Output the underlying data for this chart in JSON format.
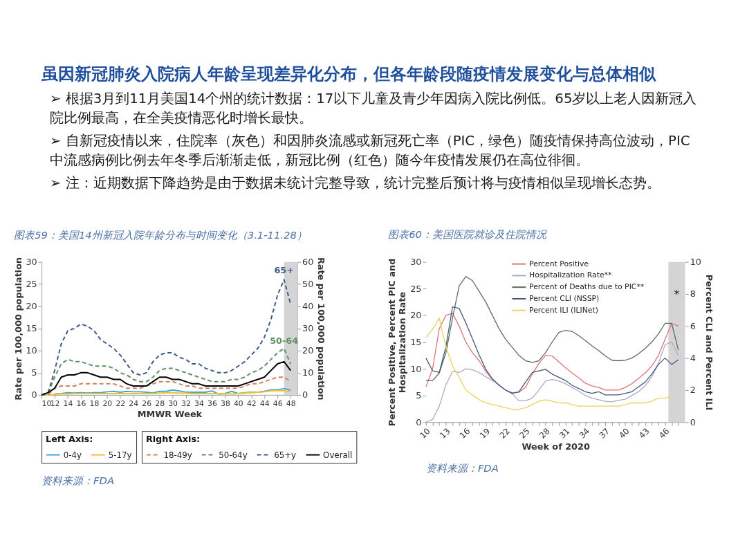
{
  "chart_data": [
    {
      "type": "other",
      "title": "虽因新冠肺炎入院病人年龄呈现差异化分布，但各年龄段随疫情发展变化与总体相似",
      "annotations": [
        "➢ 根据3月到11月美国14个州的统计数据：17以下儿童及青少年因病入院比例低。65岁以上老人因新冠入院比例最高，在全美疫情恶化时增长最快。",
        "➢ 自新冠疫情以来，住院率（灰色）和因肺炎流感或新冠死亡率（PIC，绿色）随疫情保持高位波动，PIC中流感病例比例去年冬季后渐渐走低，新冠比例（红色）随今年疫情发展仍在高位徘徊。",
        "➢ 注：近期数据下降趋势是由于数据未统计完整导致，统计完整后预计将与疫情相似呈现增长态势。"
      ]
    },
    {
      "type": "line",
      "title": "图表59：美国14州新冠入院年龄分布与时间变化（3.1-11.28）",
      "xlabel": "MMWR Week",
      "ylabel": "Rate per 100,000 population",
      "y2label": "Rate per 100,000 population",
      "legend_title": [
        "Left Axis:",
        "Right Axis:"
      ],
      "legend": "bottom",
      "x": [
        10,
        11,
        12,
        13,
        14,
        15,
        16,
        17,
        18,
        19,
        20,
        21,
        22,
        23,
        24,
        25,
        26,
        27,
        28,
        29,
        30,
        31,
        32,
        33,
        34,
        35,
        36,
        37,
        38,
        39,
        40,
        41,
        42,
        43,
        44,
        45,
        46,
        47,
        48
      ],
      "xlim": [
        10,
        49
      ],
      "xticks": [
        10,
        12,
        14,
        16,
        18,
        20,
        22,
        24,
        26,
        28,
        30,
        32,
        34,
        36,
        38,
        40,
        42,
        44,
        46,
        48
      ],
      "ylim": [
        0,
        30
      ],
      "yticks": [
        0,
        5,
        10,
        15,
        20,
        25,
        30
      ],
      "y2lim": [
        0,
        60
      ],
      "y2ticks": [
        0,
        10,
        20,
        30,
        40,
        50,
        60
      ],
      "series": [
        {
          "name": "0-4y",
          "color": "#41a6d9",
          "line_style": "solid",
          "values": [
            null,
            null,
            0.2,
            0.3,
            0.5,
            0.4,
            0.5,
            0.4,
            0.5,
            0.5,
            0.7,
            0.8,
            0.6,
            0.8,
            0.7,
            0.7,
            0.6,
            0.4,
            0.8,
            0.8,
            1.1,
            0.9,
            0.6,
            0.6,
            0.6,
            0.6,
            0.9,
            0.2,
            0.3,
            0.8,
            0.3,
            0.5,
            0.6,
            0.6,
            0.8,
            1.1,
            1.2,
            1.4,
            1.1
          ]
        },
        {
          "name": "5-17y",
          "color": "#f2c12e",
          "line_style": "solid",
          "values": [
            0,
            0,
            0.1,
            0.2,
            0.2,
            0.3,
            0.3,
            0.3,
            0.3,
            0.3,
            0.3,
            0.3,
            0.3,
            0.3,
            0.3,
            0.3,
            0.3,
            0.3,
            0.4,
            0.5,
            0.5,
            0.4,
            0.4,
            0.3,
            0.3,
            0.3,
            0.3,
            0.3,
            0.2,
            0.2,
            0.3,
            0.4,
            0.5,
            0.6,
            0.7,
            0.9,
            1.0,
            0.9,
            0.7
          ]
        },
        {
          "name": "18-49y",
          "color": "#cf8060",
          "line_style": "dashed",
          "axis": "y2",
          "values": [
            0,
            0,
            3,
            4,
            4,
            4,
            5,
            5,
            5,
            5,
            5,
            5,
            4,
            3,
            3,
            3,
            4,
            5,
            6,
            6,
            6,
            5,
            4,
            4,
            3,
            3,
            3,
            3,
            3,
            3,
            3,
            4,
            5,
            5,
            6,
            7,
            8,
            8,
            6
          ]
        },
        {
          "name": "50-64y",
          "color": "#5f8f62",
          "line_style": "dashed",
          "axis": "y2",
          "values": [
            0,
            1,
            8,
            14,
            16,
            15,
            15,
            14,
            13,
            13,
            13,
            12,
            10,
            9,
            7,
            6,
            6,
            8,
            11,
            12,
            12,
            11,
            10,
            9,
            8,
            7,
            6,
            6,
            6,
            7,
            7,
            8,
            10,
            11,
            13,
            16,
            19,
            21,
            14
          ]
        },
        {
          "name": "65+y",
          "color": "#3e5a8a",
          "line_style": "dashed",
          "axis": "y2",
          "values": [
            0,
            1,
            11,
            23,
            29,
            30,
            32,
            31,
            29,
            25,
            23,
            21,
            18,
            14,
            10,
            9,
            10,
            15,
            18,
            19,
            19,
            17,
            16,
            14,
            14,
            12,
            11,
            10,
            10,
            11,
            13,
            15,
            18,
            21,
            26,
            34,
            45,
            52,
            41
          ]
        },
        {
          "name": "Overall",
          "color": "#000000",
          "line_style": "solid",
          "axis": "y2",
          "values": [
            0,
            1,
            3,
            8,
            9,
            9,
            10,
            10,
            9,
            8,
            8,
            7,
            7,
            5,
            4,
            4,
            4,
            6,
            8,
            8,
            7,
            7,
            6,
            5,
            5,
            4,
            4,
            4,
            4,
            4,
            4,
            5,
            6,
            7,
            8,
            11,
            14,
            15,
            11
          ]
        }
      ],
      "bands": [
        {
          "axis": "x",
          "from": 47,
          "to": 49,
          "color": "#d4d4d4"
        }
      ],
      "annotations": [
        {
          "text": "65+",
          "x": 47,
          "y": 27
        },
        {
          "text": "50-64",
          "x": 47,
          "y": 11
        },
        "资料来源：FDA"
      ]
    },
    {
      "type": "line",
      "title": "图表60：美国医院就诊及住院情况",
      "xlabel": "Week of 2020",
      "ylabel": "Percent Positive, Percent PIC and Hospitalization Rate",
      "y2label": "Percent CLI and Percent ILI",
      "legend": "top right",
      "line_style": "solid",
      "x": [
        10,
        11,
        12,
        13,
        14,
        15,
        16,
        17,
        18,
        19,
        20,
        21,
        22,
        23,
        24,
        25,
        26,
        27,
        28,
        29,
        30,
        31,
        32,
        33,
        34,
        35,
        36,
        37,
        38,
        39,
        40,
        41,
        42,
        43,
        44,
        45,
        46,
        47,
        48
      ],
      "xlim": [
        10,
        49
      ],
      "xticks": [
        10,
        {
          "value": 11,
          "label": null
        },
        {
          "value": 12,
          "label": null
        },
        13,
        {
          "value": 14,
          "label": null
        },
        {
          "value": 15,
          "label": null
        },
        16,
        {
          "value": 17,
          "label": null
        },
        {
          "value": 18,
          "label": null
        },
        19,
        {
          "value": 20,
          "label": null
        },
        {
          "value": 21,
          "label": null
        },
        22,
        {
          "value": 23,
          "label": null
        },
        {
          "value": 24,
          "label": null
        },
        25,
        {
          "value": 26,
          "label": null
        },
        {
          "value": 27,
          "label": null
        },
        28,
        {
          "value": 29,
          "label": null
        },
        {
          "value": 30,
          "label": null
        },
        31,
        {
          "value": 32,
          "label": null
        },
        {
          "value": 33,
          "label": null
        },
        34,
        {
          "value": 35,
          "label": null
        },
        {
          "value": 36,
          "label": null
        },
        37,
        {
          "value": 38,
          "label": null
        },
        {
          "value": 39,
          "label": null
        },
        40,
        {
          "value": 41,
          "label": null
        },
        {
          "value": 42,
          "label": null
        },
        43,
        {
          "value": 44,
          "label": null
        },
        {
          "value": 45,
          "label": null
        },
        46,
        {
          "value": 47,
          "label": null
        },
        {
          "value": 48,
          "label": null
        }
      ],
      "ylim": [
        0,
        30
      ],
      "yticks": [
        0,
        5,
        10,
        15,
        20,
        25,
        30
      ],
      "y2lim": [
        0,
        10
      ],
      "y2ticks": [
        0,
        2,
        4,
        6,
        8,
        10
      ],
      "series": [
        {
          "name": "Percent Positive",
          "color": "#e0707a",
          "values": [
            6.6,
            10,
            17.5,
            20,
            20.4,
            18,
            15,
            13,
            11.5,
            9.5,
            8,
            7,
            6,
            5.5,
            5.6,
            6.5,
            9,
            11,
            12.5,
            12.4,
            11.3,
            10.2,
            9.2,
            8.3,
            7.3,
            6.8,
            6.5,
            6,
            6,
            6,
            6.5,
            7.2,
            8.2,
            9.2,
            10.5,
            12.5,
            15.5,
            18.5,
            18
          ]
        },
        {
          "name": "Hospitalization Rate**",
          "color": "#a9a9c9",
          "values": [
            0,
            0.5,
            3,
            7,
            9.5,
            9.3,
            10,
            9.8,
            9.3,
            8.5,
            7.8,
            7,
            6,
            5.3,
            4,
            4,
            4.5,
            6,
            7.7,
            8,
            7.7,
            7.2,
            6.5,
            5.8,
            5,
            4.5,
            4.2,
            3.9,
            3.8,
            4.1,
            4.3,
            5,
            5.7,
            6.8,
            8.5,
            11,
            14.5,
            15,
            12.5
          ]
        },
        {
          "name": "Percent of Deaths due to PIC**",
          "color": "#5a6e5a",
          "values": [
            7.8,
            7.8,
            9.2,
            13,
            19.5,
            25.5,
            27.3,
            26.5,
            24.5,
            22.5,
            20,
            17.5,
            15.5,
            14,
            12.5,
            11.5,
            11.2,
            11.5,
            13,
            15,
            16.8,
            17.2,
            17,
            16.2,
            15.3,
            14.3,
            13.4,
            12.4,
            11.6,
            11.5,
            11.6,
            12,
            12.8,
            13.8,
            15,
            16.5,
            18.5,
            18.5,
            13.5
          ]
        },
        {
          "name": "Percent CLI (NSSP)",
          "color": "#45557a",
          "axis": "y2",
          "values": [
            4.0,
            3.2,
            3.1,
            4.7,
            7.2,
            7.1,
            6.2,
            5.2,
            4.2,
            3.3,
            2.7,
            2.3,
            2.0,
            1.8,
            1.9,
            2.5,
            3.1,
            3.2,
            3.3,
            3.0,
            2.8,
            2.6,
            2.3,
            2.1,
            1.9,
            1.8,
            1.9,
            1.7,
            1.7,
            1.7,
            1.8,
            1.9,
            2.2,
            2.5,
            3.0,
            3.6,
            4.0,
            3.6,
            3.9
          ]
        },
        {
          "name": "Percent ILI (ILINet)",
          "color": "#e8d45a",
          "axis": "y2",
          "values": [
            5.3,
            5.8,
            6.5,
            4.7,
            3.5,
            2.8,
            2.0,
            1.7,
            1.4,
            1.2,
            1.1,
            1.0,
            0.9,
            0.8,
            0.8,
            0.9,
            1.1,
            1.3,
            1.4,
            1.3,
            1.2,
            1.2,
            1.1,
            1.0,
            1.0,
            1.0,
            1.0,
            1.0,
            1.0,
            1.0,
            1.1,
            1.2,
            1.2,
            1.2,
            1.3,
            1.5,
            1.5,
            1.6,
            null
          ]
        }
      ],
      "bands": [
        {
          "axis": "x",
          "from": 46.5,
          "to": 49,
          "color": "#d4d4d4",
          "label": "*"
        }
      ],
      "annotations": [
        "资料来源：FDA"
      ]
    }
  ]
}
